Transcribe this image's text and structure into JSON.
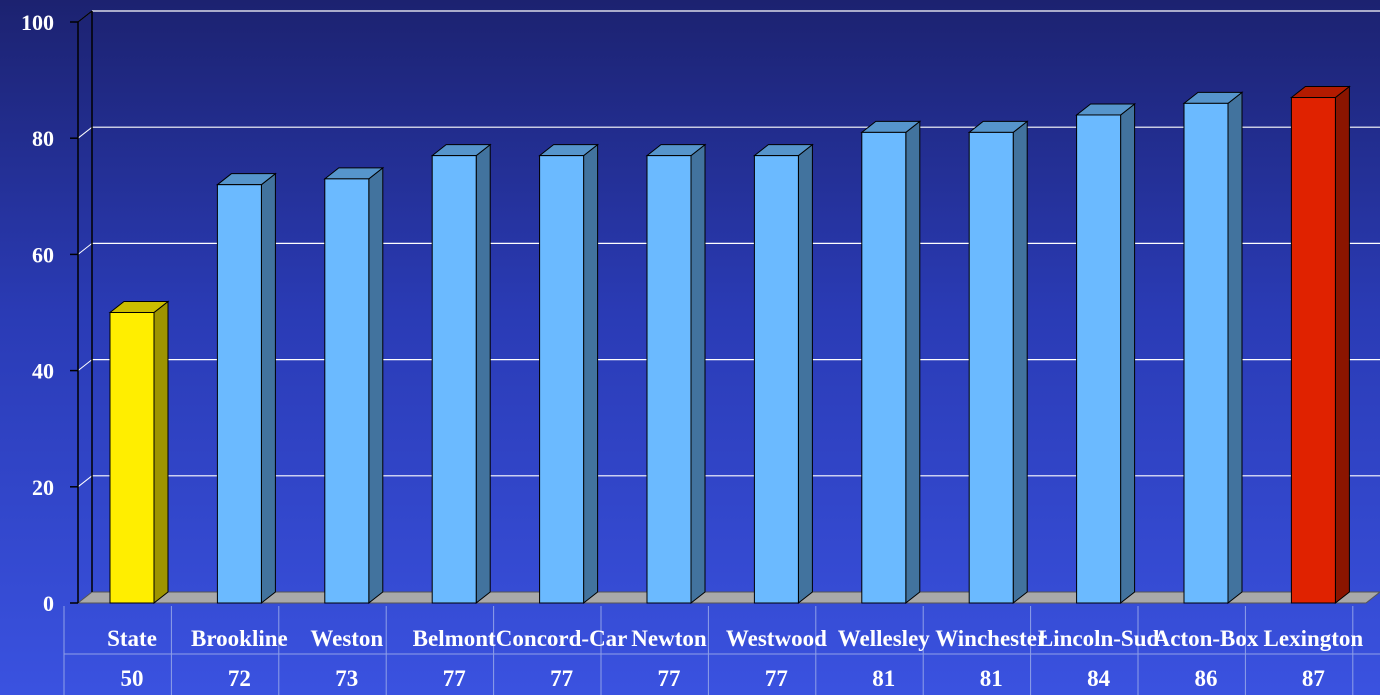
{
  "chart_data": {
    "type": "bar",
    "categories": [
      "State",
      "Brookline",
      "Weston",
      "Belmont",
      "Concord-Car",
      "Newton",
      "Westwood",
      "Wellesley",
      "Winchester",
      "Lincoln-Sud",
      "Acton-Box",
      "Lexington"
    ],
    "values": [
      50,
      72,
      73,
      77,
      77,
      77,
      77,
      81,
      81,
      84,
      86,
      87
    ],
    "ylim": [
      0,
      100
    ],
    "yticks": [
      0,
      20,
      40,
      60,
      80,
      100
    ],
    "grid": true,
    "data_table": true,
    "bar_colors": [
      "#ffee00",
      "#6bbaff",
      "#6bbaff",
      "#6bbaff",
      "#6bbaff",
      "#6bbaff",
      "#6bbaff",
      "#6bbaff",
      "#6bbaff",
      "#6bbaff",
      "#6bbaff",
      "#e02200"
    ]
  }
}
